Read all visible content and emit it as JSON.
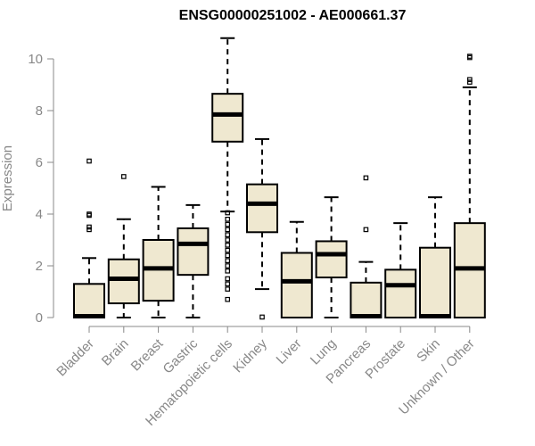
{
  "chart_data": {
    "type": "box",
    "title": "ENSG00000251002 - AE000661.37",
    "ylabel": "Expression",
    "xlabel": "",
    "ylim": [
      0,
      11
    ],
    "yticks": [
      0,
      2,
      4,
      6,
      8,
      10
    ],
    "categories": [
      "Bladder",
      "Brain",
      "Breast",
      "Gastric",
      "Hematopoietic cells",
      "Kidney",
      "Liver",
      "Lung",
      "Pancreas",
      "Prostate",
      "Skin",
      "Unknown / Other"
    ],
    "boxes": [
      {
        "min": 0,
        "q1": 0,
        "median": 0.05,
        "q3": 1.3,
        "max": 2.3,
        "outliers": [
          6.05,
          4.0,
          3.95,
          3.5,
          3.4
        ]
      },
      {
        "min": 0,
        "q1": 0.55,
        "median": 1.5,
        "q3": 2.25,
        "max": 3.8,
        "outliers": [
          5.45
        ]
      },
      {
        "min": 0,
        "q1": 0.65,
        "median": 1.9,
        "q3": 3.0,
        "max": 5.05,
        "outliers": []
      },
      {
        "min": 0,
        "q1": 1.65,
        "median": 2.85,
        "q3": 3.45,
        "max": 4.35,
        "outliers": []
      },
      {
        "min": 4.1,
        "q1": 6.8,
        "median": 7.85,
        "q3": 8.65,
        "max": 10.8,
        "outliers": [
          4.05,
          3.8,
          3.6,
          3.4,
          3.2,
          3.0,
          2.8,
          2.6,
          2.4,
          2.2,
          2.0,
          1.8,
          1.5,
          1.3,
          1.1,
          0.7
        ]
      },
      {
        "min": 1.1,
        "q1": 3.3,
        "median": 4.4,
        "q3": 5.15,
        "max": 6.9,
        "outliers": [
          0.02
        ]
      },
      {
        "min": 0,
        "q1": 0,
        "median": 1.4,
        "q3": 2.5,
        "max": 3.7,
        "outliers": []
      },
      {
        "min": 0,
        "q1": 1.55,
        "median": 2.45,
        "q3": 2.95,
        "max": 4.65,
        "outliers": []
      },
      {
        "min": 0,
        "q1": 0,
        "median": 0.05,
        "q3": 1.35,
        "max": 2.15,
        "outliers": [
          5.4,
          3.4
        ]
      },
      {
        "min": 0,
        "q1": 0,
        "median": 1.25,
        "q3": 1.85,
        "max": 3.65,
        "outliers": []
      },
      {
        "min": 0,
        "q1": 0,
        "median": 0.05,
        "q3": 2.7,
        "max": 4.65,
        "outliers": []
      },
      {
        "min": 0,
        "q1": 0,
        "median": 1.9,
        "q3": 3.65,
        "max": 8.9,
        "outliers": [
          10.1,
          10.05,
          9.2,
          9.1
        ]
      }
    ],
    "box_fill": "#efe8d0",
    "stroke_color": "#000000",
    "axis_color": "#888888",
    "grid": false,
    "legend": "none"
  }
}
